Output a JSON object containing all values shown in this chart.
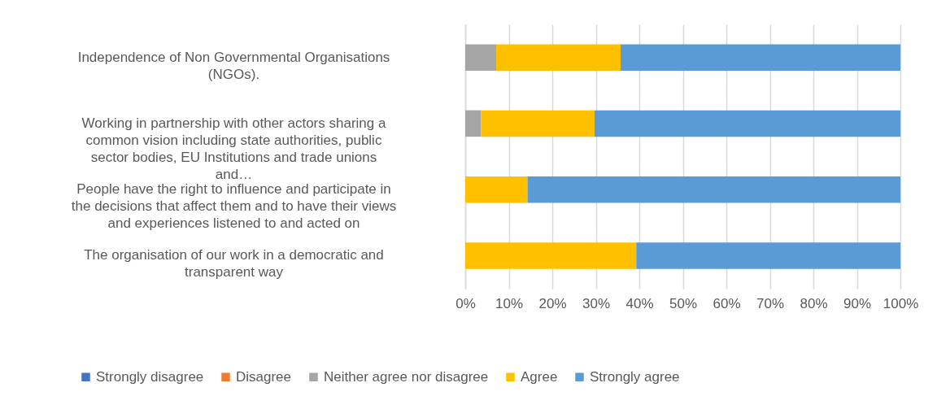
{
  "chart_data": {
    "type": "bar",
    "orientation": "horizontal",
    "stacked": true,
    "categories": [
      "Independence of Non Governmental Organisations (NGOs).",
      "Working in partnership with other actors sharing a common vision including state authorities, public sector bodies, EU Institutions and  trade unions and…",
      "People have the right to influence and participate in the decisions that affect them and to have their views and experiences listened to and acted on",
      "The organisation of our work in a democratic and transparent way"
    ],
    "series": [
      {
        "name": "Strongly disagree",
        "color": "#4472c4",
        "values": [
          0,
          0,
          0,
          0
        ]
      },
      {
        "name": "Disagree",
        "color": "#ed7d31",
        "values": [
          0,
          0,
          0,
          0
        ]
      },
      {
        "name": "Neither agree nor disagree",
        "color": "#a5a5a5",
        "values": [
          7.1,
          3.6,
          0,
          0
        ]
      },
      {
        "name": "Agree",
        "color": "#ffc000",
        "values": [
          28.6,
          26.1,
          14.3,
          39.3
        ]
      },
      {
        "name": "Strongly agree",
        "color": "#5b9bd5",
        "values": [
          64.3,
          70.3,
          85.7,
          60.7
        ]
      }
    ],
    "xlim": [
      0,
      100
    ],
    "xticks": [
      {
        "value": 0,
        "label": "0%"
      },
      {
        "value": 10,
        "label": "10%"
      },
      {
        "value": 20,
        "label": "20%"
      },
      {
        "value": 30,
        "label": "30%"
      },
      {
        "value": 40,
        "label": "40%"
      },
      {
        "value": 50,
        "label": "50%"
      },
      {
        "value": 60,
        "label": "60%"
      },
      {
        "value": 70,
        "label": "70%"
      },
      {
        "value": 80,
        "label": "80%"
      },
      {
        "value": 90,
        "label": "90%"
      },
      {
        "value": 100,
        "label": "100%"
      }
    ],
    "grid": "x",
    "legend": "bottom"
  }
}
